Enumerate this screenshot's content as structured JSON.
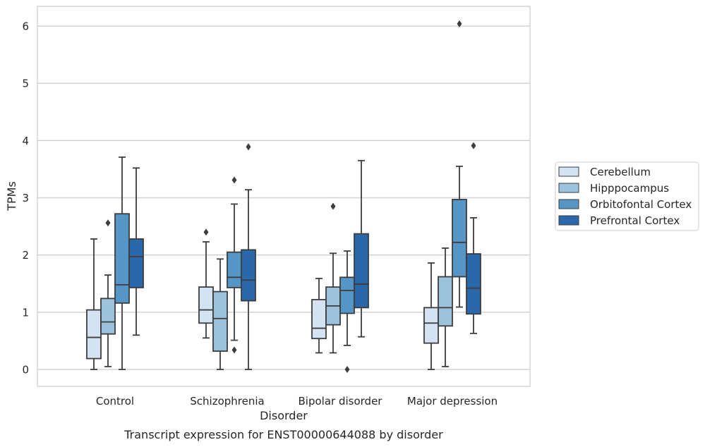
{
  "chart_data": {
    "type": "box",
    "caption": "Transcript expression for ENST00000644088 by disorder",
    "xlabel": "Disorder",
    "ylabel": "TPMs",
    "ylim": [
      -0.3,
      6.35
    ],
    "yticks": [
      0,
      1,
      2,
      3,
      4,
      5,
      6
    ],
    "grid": "horizontal",
    "legend_position": "right",
    "categories": [
      "Control",
      "Schizophrenia",
      "Bipolar disorder",
      "Major depression"
    ],
    "series": [
      {
        "name": "Cerebellum",
        "color": "#d4e3f1",
        "boxes": [
          {
            "whisker_low": 0.0,
            "q1": 0.19,
            "median": 0.56,
            "q3": 1.04,
            "whisker_high": 2.28,
            "outliers": []
          },
          {
            "whisker_low": 0.55,
            "q1": 0.81,
            "median": 1.04,
            "q3": 1.44,
            "whisker_high": 2.23,
            "outliers": [
              2.4
            ]
          },
          {
            "whisker_low": 0.29,
            "q1": 0.54,
            "median": 0.72,
            "q3": 1.22,
            "whisker_high": 1.59,
            "outliers": []
          },
          {
            "whisker_low": 0.0,
            "q1": 0.46,
            "median": 0.81,
            "q3": 1.08,
            "whisker_high": 1.86,
            "outliers": []
          }
        ]
      },
      {
        "name": "Hipppocampus",
        "color": "#9cc2dc",
        "boxes": [
          {
            "whisker_low": 0.05,
            "q1": 0.62,
            "median": 0.83,
            "q3": 1.24,
            "whisker_high": 1.65,
            "outliers": [
              2.56
            ]
          },
          {
            "whisker_low": 0.0,
            "q1": 0.32,
            "median": 0.89,
            "q3": 1.36,
            "whisker_high": 1.93,
            "outliers": []
          },
          {
            "whisker_low": 0.29,
            "q1": 0.78,
            "median": 1.11,
            "q3": 1.44,
            "whisker_high": 2.03,
            "outliers": [
              2.85
            ]
          },
          {
            "whisker_low": 0.05,
            "q1": 0.76,
            "median": 1.08,
            "q3": 1.62,
            "whisker_high": 2.12,
            "outliers": []
          }
        ]
      },
      {
        "name": "Orbitofontal Cortex",
        "color": "#5596c6",
        "boxes": [
          {
            "whisker_low": 0.0,
            "q1": 1.16,
            "median": 1.48,
            "q3": 2.72,
            "whisker_high": 3.71,
            "outliers": []
          },
          {
            "whisker_low": 0.51,
            "q1": 1.43,
            "median": 1.61,
            "q3": 2.05,
            "whisker_high": 2.89,
            "outliers": [
              3.31,
              0.34
            ]
          },
          {
            "whisker_low": 0.42,
            "q1": 0.98,
            "median": 1.38,
            "q3": 1.61,
            "whisker_high": 2.07,
            "outliers": [
              0.0
            ]
          },
          {
            "whisker_low": 1.09,
            "q1": 1.62,
            "median": 2.22,
            "q3": 2.97,
            "whisker_high": 3.55,
            "outliers": [
              6.04
            ]
          }
        ]
      },
      {
        "name": "Prefrontal Cortex",
        "color": "#2a68a9",
        "boxes": [
          {
            "whisker_low": 0.6,
            "q1": 1.43,
            "median": 1.97,
            "q3": 2.28,
            "whisker_high": 3.52,
            "outliers": []
          },
          {
            "whisker_low": 0.0,
            "q1": 1.2,
            "median": 1.56,
            "q3": 2.09,
            "whisker_high": 3.14,
            "outliers": [
              3.89
            ]
          },
          {
            "whisker_low": 0.57,
            "q1": 1.08,
            "median": 1.49,
            "q3": 2.37,
            "whisker_high": 3.65,
            "outliers": []
          },
          {
            "whisker_low": 0.63,
            "q1": 0.97,
            "median": 1.42,
            "q3": 2.02,
            "whisker_high": 2.65,
            "outliers": [
              3.91
            ]
          }
        ]
      }
    ]
  }
}
